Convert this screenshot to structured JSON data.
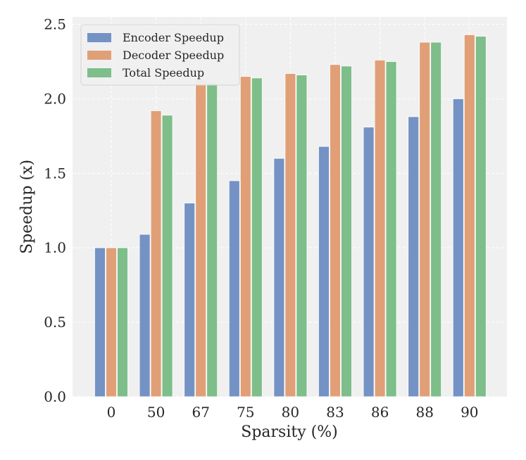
{
  "chart_data": {
    "type": "bar",
    "title": "",
    "xlabel": "Sparsity (%)",
    "ylabel": "Speedup (x)",
    "categories": [
      "0",
      "50",
      "67",
      "75",
      "80",
      "83",
      "86",
      "88",
      "90"
    ],
    "series": [
      {
        "name": "Encoder Speedup",
        "color": "#7492c4",
        "values": [
          1.0,
          1.09,
          1.3,
          1.45,
          1.6,
          1.68,
          1.81,
          1.88,
          2.0
        ]
      },
      {
        "name": "Decoder Speedup",
        "color": "#e19f77",
        "values": [
          1.0,
          1.92,
          2.13,
          2.15,
          2.17,
          2.23,
          2.26,
          2.38,
          2.43
        ]
      },
      {
        "name": "Total Speedup",
        "color": "#7dbe8b",
        "values": [
          1.0,
          1.89,
          2.11,
          2.14,
          2.16,
          2.22,
          2.25,
          2.38,
          2.42
        ]
      }
    ],
    "ylim": [
      0,
      2.55
    ],
    "yticks": [
      "0.0",
      "0.5",
      "1.0",
      "1.5",
      "2.0",
      "2.5"
    ],
    "grid": true,
    "legend_position": "top-left",
    "background_color": "#f0f0f0"
  }
}
